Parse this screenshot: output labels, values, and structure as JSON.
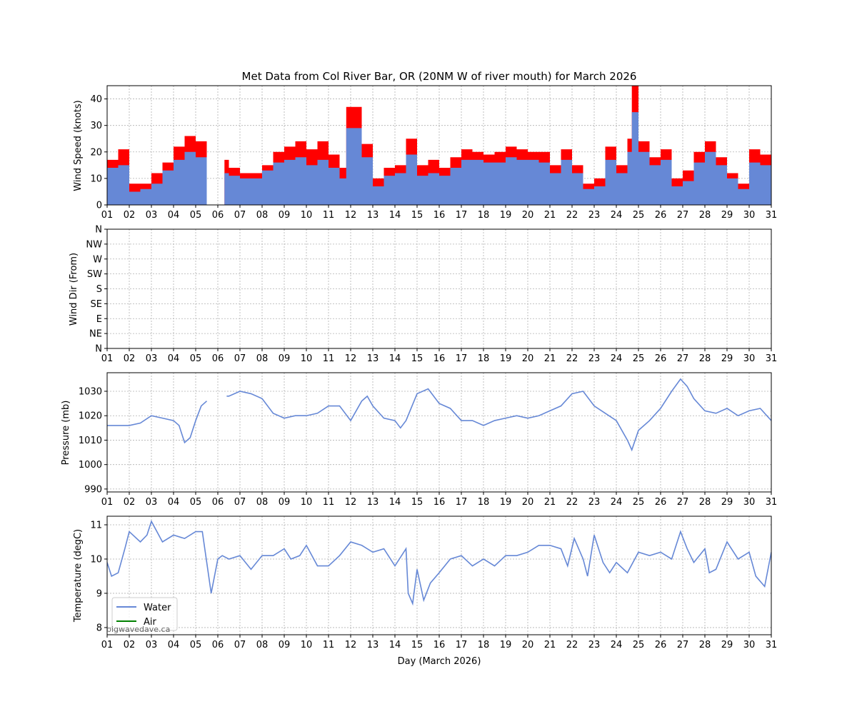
{
  "chart_data": [
    {
      "type": "area",
      "title": "Met Data from Col River Bar, OR (20NM W of river mouth) for March 2026",
      "ylabel": "Wind Speed (knots)",
      "xlim": [
        1,
        31
      ],
      "ylim": [
        0,
        45
      ],
      "yticks": [
        0,
        10,
        20,
        30,
        40
      ],
      "grid": true,
      "colors": {
        "gust": "#ff0000",
        "speed": "#6688d6"
      },
      "series": [
        {
          "name": "gust",
          "x": [
            1,
            1.5,
            2,
            2.5,
            3,
            3.5,
            4,
            4.5,
            5,
            5.5,
            null,
            6.3,
            6.5,
            7,
            7.5,
            8,
            8.5,
            9,
            9.5,
            10,
            10.5,
            11,
            11.5,
            11.8,
            12,
            12.5,
            13,
            13.5,
            14,
            14.5,
            15,
            15.5,
            16,
            16.5,
            17,
            17.5,
            18,
            18.5,
            19,
            19.5,
            20,
            20.5,
            21,
            21.5,
            22,
            22.5,
            23,
            23.5,
            24,
            24.5,
            24.7,
            25,
            25.5,
            26,
            26.5,
            27,
            27.5,
            28,
            28.5,
            29,
            29.5,
            30,
            30.5,
            31
          ],
          "values": [
            17,
            21,
            8,
            8,
            12,
            16,
            22,
            26,
            24,
            21,
            null,
            17,
            14,
            12,
            12,
            15,
            20,
            22,
            24,
            21,
            24,
            19,
            14,
            37,
            37,
            23,
            10,
            14,
            15,
            25,
            15,
            17,
            14,
            18,
            21,
            20,
            19,
            20,
            22,
            21,
            20,
            20,
            15,
            21,
            15,
            8,
            10,
            22,
            15,
            25,
            45,
            24,
            18,
            21,
            10,
            13,
            20,
            24,
            18,
            12,
            8,
            21,
            19,
            23
          ]
        },
        {
          "name": "speed",
          "x": [
            1,
            1.5,
            2,
            2.5,
            3,
            3.5,
            4,
            4.5,
            5,
            5.5,
            null,
            6.3,
            6.5,
            7,
            7.5,
            8,
            8.5,
            9,
            9.5,
            10,
            10.5,
            11,
            11.5,
            11.8,
            12,
            12.5,
            13,
            13.5,
            14,
            14.5,
            15,
            15.5,
            16,
            16.5,
            17,
            17.5,
            18,
            18.5,
            19,
            19.5,
            20,
            20.5,
            21,
            21.5,
            22,
            22.5,
            23,
            23.5,
            24,
            24.5,
            24.7,
            25,
            25.5,
            26,
            26.5,
            27,
            27.5,
            28,
            28.5,
            29,
            29.5,
            30,
            30.5,
            31
          ],
          "values": [
            14,
            15,
            5,
            6,
            8,
            13,
            17,
            20,
            18,
            17,
            null,
            12,
            11,
            10,
            10,
            13,
            16,
            17,
            18,
            15,
            17,
            14,
            10,
            29,
            29,
            18,
            7,
            11,
            12,
            19,
            11,
            12,
            11,
            14,
            17,
            17,
            16,
            16,
            18,
            17,
            17,
            16,
            12,
            17,
            12,
            6,
            7,
            17,
            12,
            20,
            35,
            20,
            15,
            17,
            7,
            9,
            16,
            20,
            15,
            10,
            6,
            16,
            15,
            17
          ]
        }
      ]
    },
    {
      "type": "scatter",
      "ylabel": "Wind Dir (From)",
      "xlim": [
        1,
        31
      ],
      "yticklabels": [
        "N",
        "NE",
        "E",
        "SE",
        "S",
        "SW",
        "W",
        "NW",
        "N"
      ],
      "grid": true,
      "series": []
    },
    {
      "type": "line",
      "ylabel": "Pressure (mb)",
      "xlim": [
        1,
        31
      ],
      "ylim": [
        988.8,
        1037.6
      ],
      "yticks": [
        990,
        1000,
        1010,
        1020,
        1030
      ],
      "grid": true,
      "colors": {
        "pressure": "#6688d6"
      },
      "series": [
        {
          "name": "pressure",
          "x": [
            1,
            1.5,
            2,
            2.5,
            3,
            3.5,
            4,
            4.25,
            4.5,
            4.75,
            5,
            5.25,
            5.5,
            null,
            6.4,
            6.5,
            7,
            7.5,
            8,
            8.5,
            9,
            9.5,
            10,
            10.5,
            11,
            11.5,
            12,
            12.5,
            12.75,
            13,
            13.5,
            14,
            14.25,
            14.5,
            15,
            15.5,
            16,
            16.5,
            17,
            17.5,
            18,
            18.5,
            19,
            19.5,
            20,
            20.5,
            21,
            21.5,
            22,
            22.5,
            23,
            23.5,
            24,
            24.5,
            24.7,
            25,
            25.5,
            26,
            26.5,
            26.9,
            27.2,
            27.5,
            28,
            28.5,
            29,
            29.5,
            30,
            30.5,
            31
          ],
          "values": [
            1016,
            1016,
            1016,
            1017,
            1020,
            1019,
            1018,
            1016,
            1009,
            1011,
            1018,
            1024,
            1026,
            null,
            1028,
            1028,
            1030,
            1029,
            1027,
            1021,
            1019,
            1020,
            1020,
            1021,
            1024,
            1024,
            1018,
            1026,
            1028,
            1024,
            1019,
            1018,
            1015,
            1018,
            1029,
            1031,
            1025,
            1023,
            1018,
            1018,
            1016,
            1018,
            1019,
            1020,
            1019,
            1020,
            1022,
            1024,
            1029,
            1030,
            1024,
            1021,
            1018,
            1010,
            1006,
            1014,
            1018,
            1023,
            1030,
            1035,
            1032,
            1027,
            1022,
            1021,
            1023,
            1020,
            1022,
            1023,
            1018
          ]
        }
      ]
    },
    {
      "type": "line",
      "ylabel": "Temperature (degC)",
      "xlabel": "Day (March 2026)",
      "xlim": [
        1,
        31
      ],
      "ylim": [
        7.79,
        11.25
      ],
      "yticks": [
        8,
        9,
        10,
        11
      ],
      "grid": true,
      "legend": {
        "placement": "lower-left",
        "entries": [
          "Water",
          "Air"
        ]
      },
      "colors": {
        "Water": "#6688d6",
        "Air": "#008000"
      },
      "series": [
        {
          "name": "Water",
          "x": [
            1,
            1.2,
            1.5,
            1.8,
            2,
            2.5,
            2.8,
            3,
            3.5,
            4,
            4.5,
            5,
            5.3,
            5.5,
            5.7,
            6,
            6.2,
            6.5,
            7,
            7.5,
            8,
            8.5,
            9,
            9.3,
            9.7,
            10,
            10.5,
            11,
            11.5,
            12,
            12.5,
            13,
            13.5,
            14,
            14.5,
            14.6,
            14.8,
            15,
            15.3,
            15.6,
            16,
            16.5,
            17,
            17.5,
            18,
            18.5,
            19,
            19.5,
            20,
            20.5,
            21,
            21.5,
            21.8,
            22.1,
            22.5,
            22.7,
            23,
            23.4,
            23.7,
            24,
            24.5,
            25,
            25.5,
            26,
            26.5,
            26.9,
            27.2,
            27.5,
            28,
            28.2,
            28.5,
            29,
            29.5,
            30,
            30.3,
            30.7,
            31
          ],
          "values": [
            9.9,
            9.5,
            9.6,
            10.3,
            10.8,
            10.5,
            10.7,
            11.1,
            10.5,
            10.7,
            10.6,
            10.8,
            10.8,
            9.9,
            9.0,
            10.0,
            10.1,
            10.0,
            10.1,
            9.7,
            10.1,
            10.1,
            10.3,
            10.0,
            10.1,
            10.4,
            9.8,
            9.8,
            10.1,
            10.5,
            10.4,
            10.2,
            10.3,
            9.8,
            10.3,
            9.0,
            8.7,
            9.7,
            8.8,
            9.3,
            9.6,
            10.0,
            10.1,
            9.8,
            10.0,
            9.8,
            10.1,
            10.1,
            10.2,
            10.4,
            10.4,
            10.3,
            9.8,
            10.6,
            10.0,
            9.5,
            10.7,
            9.9,
            9.6,
            9.9,
            9.6,
            10.2,
            10.1,
            10.2,
            10.0,
            10.8,
            10.3,
            9.9,
            10.3,
            9.6,
            9.7,
            10.5,
            10.0,
            10.2,
            9.5,
            9.2,
            10.2
          ]
        },
        {
          "name": "Air",
          "x": [],
          "values": []
        }
      ]
    }
  ],
  "xticklabels": [
    "01",
    "02",
    "03",
    "04",
    "05",
    "06",
    "07",
    "08",
    "09",
    "10",
    "11",
    "12",
    "13",
    "14",
    "15",
    "16",
    "17",
    "18",
    "19",
    "20",
    "21",
    "22",
    "23",
    "24",
    "25",
    "26",
    "27",
    "28",
    "29",
    "30",
    "31"
  ],
  "watermark": "bigwavedave.ca"
}
